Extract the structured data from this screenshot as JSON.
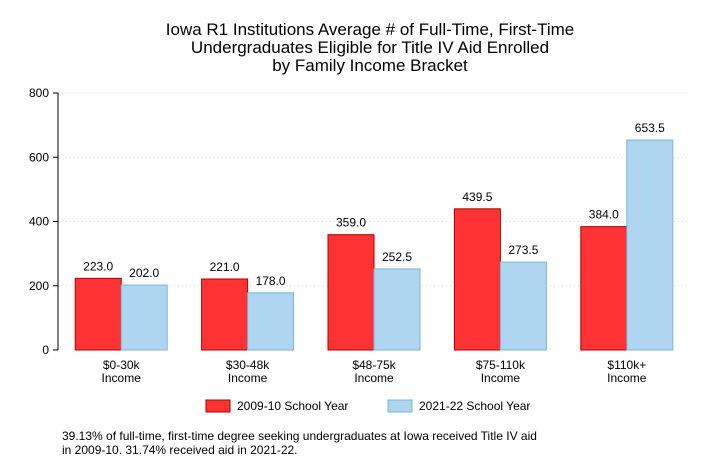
{
  "chart_data": {
    "type": "bar",
    "title_lines": [
      "Iowa R1 Institutions Average # of Full-Time, First-Time",
      "Undergraduates Eligible for Title IV Aid Enrolled",
      "by Family Income Bracket"
    ],
    "categories": [
      [
        "$0-30k",
        "Income"
      ],
      [
        "$30-48k",
        "Income"
      ],
      [
        "$48-75k",
        "Income"
      ],
      [
        "$75-110k",
        "Income"
      ],
      [
        "$110k+",
        "Income"
      ]
    ],
    "series": [
      {
        "name": "2009-10 School Year",
        "color": "#ff3333",
        "stroke": "#b00000",
        "values": [
          223.0,
          221.0,
          359.0,
          439.5,
          384.0
        ],
        "labels": [
          "223.0",
          "221.0",
          "359.0",
          "439.5",
          "384.0"
        ]
      },
      {
        "name": "2021-22 School Year",
        "color": "#aed6f1",
        "stroke": "#7fb3d9",
        "values": [
          202.0,
          178.0,
          252.5,
          273.5,
          653.5
        ],
        "labels": [
          "202.0",
          "178.0",
          "252.5",
          "273.5",
          "653.5"
        ]
      }
    ],
    "ylim": [
      0,
      800
    ],
    "yticks": [
      0,
      200,
      400,
      600,
      800
    ],
    "grid": true,
    "legend": "bottom",
    "note_lines": [
      "39.13% of full-time, first-time degree seeking undergraduates at Iowa received Title IV aid",
      "in 2009-10. 31.74% received aid in 2021-22."
    ]
  }
}
